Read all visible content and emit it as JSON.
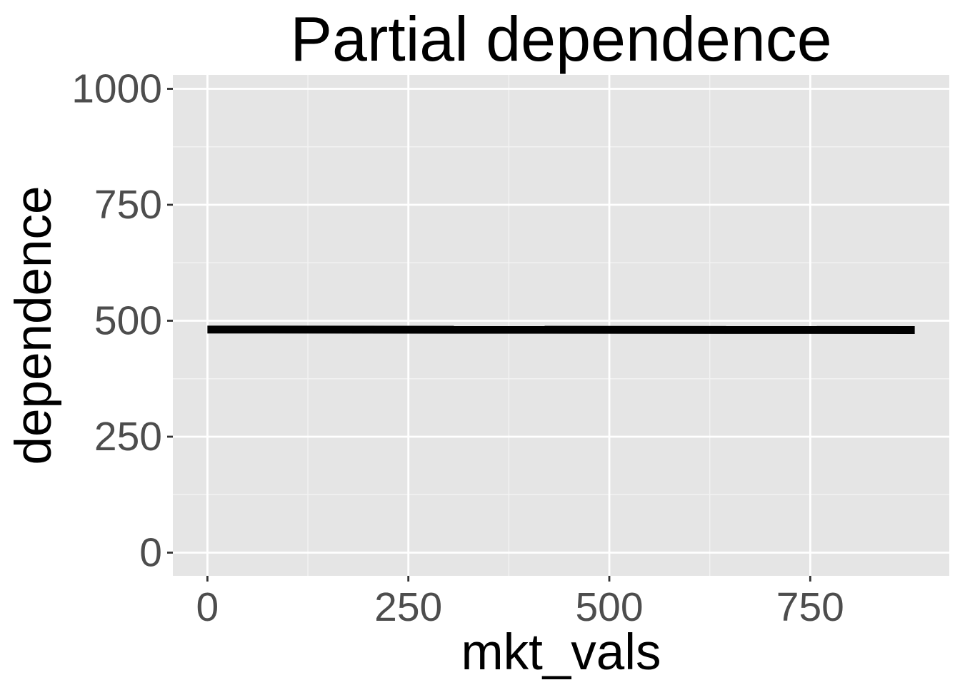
{
  "chart_data": {
    "type": "line",
    "title": "Partial dependence",
    "xlabel": "mkt_vals",
    "ylabel": "dependence",
    "xlim": [
      -43,
      923
    ],
    "ylim": [
      -50,
      1030
    ],
    "x_ticks": [
      0,
      250,
      500,
      750
    ],
    "x_tick_labels": [
      "0",
      "250",
      "500",
      "750"
    ],
    "y_ticks": [
      0,
      250,
      500,
      750,
      1000
    ],
    "y_tick_labels": [
      "0",
      "250",
      "500",
      "750",
      "1000"
    ],
    "grid": true,
    "legend": "none",
    "series": [
      {
        "x": [
          0,
          880
        ],
        "y": [
          481,
          480
        ],
        "color": "#000000"
      }
    ],
    "colors": {
      "panel_background": "#e5e5e5",
      "grid_major": "#ffffff",
      "grid_minor": "#f2f2f2",
      "tick_label": "#4d4d4d",
      "tick_mark": "#333333"
    }
  }
}
